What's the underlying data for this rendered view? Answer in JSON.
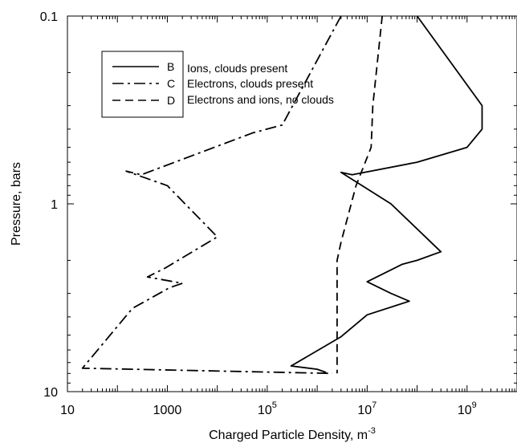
{
  "chart_data": {
    "type": "line",
    "xlabel": "Charged Particle Density, m",
    "xlabel_sup": "-3",
    "ylabel": "Pressure, bars",
    "x_scale": "log",
    "y_scale": "log",
    "y_inverted": true,
    "xlim": [
      10,
      10000000000
    ],
    "ylim": [
      0.1,
      10
    ],
    "x_ticks": [
      {
        "value": 10,
        "base": "10",
        "exp": ""
      },
      {
        "value": 1000,
        "base": "1000",
        "exp": ""
      },
      {
        "value": 100000,
        "base": "10",
        "exp": "5"
      },
      {
        "value": 10000000,
        "base": "10",
        "exp": "7"
      },
      {
        "value": 1000000000,
        "base": "10",
        "exp": "9"
      }
    ],
    "y_ticks": [
      {
        "value": 0.1,
        "label": "0.1"
      },
      {
        "value": 1,
        "label": "1"
      },
      {
        "value": 10,
        "label": "10"
      }
    ],
    "grid": false,
    "legend_position": "top-left",
    "series": [
      {
        "name": "B",
        "description": "Ions, clouds present",
        "dash": "solid",
        "points": [
          [
            100000000,
            0.1
          ],
          [
            2000000000,
            0.3
          ],
          [
            2000000000,
            0.4
          ],
          [
            1000000000,
            0.5
          ],
          [
            100000000,
            0.6
          ],
          [
            5000000,
            0.7
          ],
          [
            3000000,
            0.68
          ],
          [
            30000000,
            1.0
          ],
          [
            300000000,
            1.8
          ],
          [
            100000000,
            2.0
          ],
          [
            50000000,
            2.1
          ],
          [
            10000000,
            2.6
          ],
          [
            30000000,
            3.0
          ],
          [
            70000000,
            3.3
          ],
          [
            10000000,
            3.9
          ],
          [
            3000000,
            5.1
          ],
          [
            300000,
            7.3
          ],
          [
            1000000,
            7.6
          ],
          [
            1500000,
            7.9
          ]
        ]
      },
      {
        "name": "C",
        "description": "Electrons, clouds present",
        "dash": "dash-dot",
        "points": [
          [
            3000000,
            0.1
          ],
          [
            200000,
            0.38
          ],
          [
            50000,
            0.42
          ],
          [
            300,
            0.7
          ],
          [
            150,
            0.67
          ],
          [
            1000,
            0.8
          ],
          [
            10000,
            1.5
          ],
          [
            900,
            2.2
          ],
          [
            400,
            2.45
          ],
          [
            2000,
            2.65
          ],
          [
            1100,
            2.8
          ],
          [
            200,
            3.6
          ],
          [
            20,
            7.5
          ],
          [
            2000000,
            8.0
          ]
        ]
      },
      {
        "name": "D",
        "description": "Electrons and ions, no clouds",
        "dash": "dashed",
        "points": [
          [
            20000000,
            0.1
          ],
          [
            13000000,
            0.3
          ],
          [
            12000000,
            0.5
          ],
          [
            6000000,
            0.8
          ],
          [
            3000000,
            1.6
          ],
          [
            2500000,
            2.0
          ],
          [
            2500000,
            3.0
          ],
          [
            2500000,
            4.0
          ],
          [
            2500000,
            6.0
          ],
          [
            2500000,
            8.0
          ]
        ]
      }
    ]
  }
}
